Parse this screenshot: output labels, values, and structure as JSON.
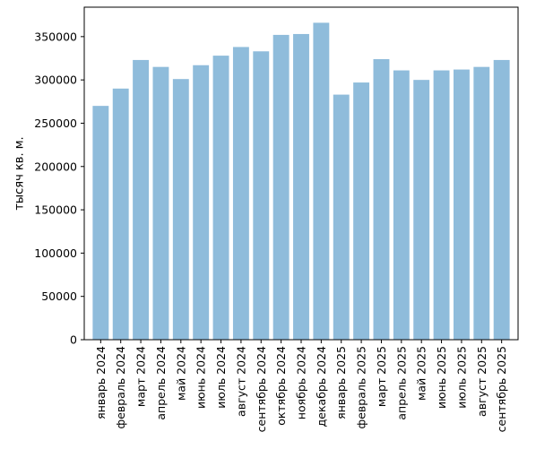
{
  "chart_data": {
    "type": "bar",
    "title": "",
    "xlabel": "",
    "ylabel": "тысяч кв. м.",
    "ylim": [
      0,
      384000
    ],
    "yticks": [
      0,
      50000,
      100000,
      150000,
      200000,
      250000,
      300000,
      350000
    ],
    "grid": false,
    "legend": "none",
    "bar_color": "#8fbcdb",
    "categories": [
      "январь 2024",
      "февраль 2024",
      "март 2024",
      "апрель 2024",
      "май 2024",
      "июнь 2024",
      "июль 2024",
      "август 2024",
      "сентябрь 2024",
      "октябрь 2024",
      "ноябрь 2024",
      "декабрь 2024",
      "январь 2025",
      "февраль 2025",
      "март 2025",
      "апрель 2025",
      "май 2025",
      "июнь 2025",
      "июль 2025",
      "август 2025",
      "сентябрь 2025"
    ],
    "values": [
      270000,
      290000,
      323000,
      315000,
      301000,
      317000,
      328000,
      338000,
      333000,
      352000,
      353000,
      366000,
      283000,
      297000,
      324000,
      311000,
      300000,
      311000,
      312000,
      315000,
      323000
    ]
  }
}
